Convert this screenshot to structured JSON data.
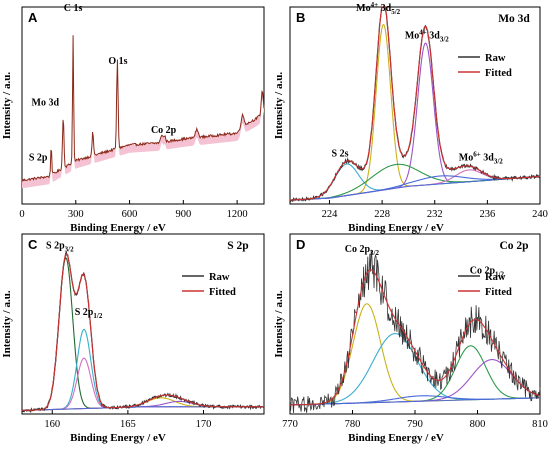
{
  "colors": {
    "raw": "#333333",
    "fitted": "#cc3333",
    "survey_fill": "#f4c2d2",
    "survey_line": "#8b2a1a",
    "yellow": "#c9b21a",
    "purple": "#9a55c9",
    "cyan": "#3aaed0",
    "green": "#2f9a4a",
    "pink": "#d470c0",
    "blue": "#4a6ad8",
    "dark_green": "#1f6b2f"
  },
  "chart_data": [
    {
      "id": "A",
      "type": "line",
      "panel_letter": "A",
      "title": "",
      "xlabel": "Binding Energy / eV",
      "ylabel": "Intensity / a.u.",
      "xlim": [
        0,
        1350
      ],
      "ylim": [
        0,
        100
      ],
      "x_ticks": [
        "0",
        "300",
        "600",
        "900",
        "1200"
      ],
      "x_tick_values": [
        0,
        300,
        600,
        900,
        1200
      ],
      "baseline": [
        [
          0,
          12
        ],
        [
          150,
          14
        ],
        [
          300,
          22
        ],
        [
          450,
          26
        ],
        [
          600,
          30
        ],
        [
          760,
          31
        ],
        [
          900,
          33
        ],
        [
          1000,
          34
        ],
        [
          1100,
          35
        ],
        [
          1200,
          36
        ],
        [
          1240,
          40
        ],
        [
          1300,
          43
        ],
        [
          1330,
          45
        ],
        [
          1350,
          47
        ]
      ],
      "peaks": [
        [
          163,
          15,
          3
        ],
        [
          230,
          26,
          4
        ],
        [
          285,
          65,
          3
        ],
        [
          395,
          12,
          4
        ],
        [
          532,
          45,
          4
        ],
        [
          780,
          4,
          6
        ],
        [
          796,
          3,
          5
        ],
        [
          975,
          4,
          8
        ],
        [
          1230,
          6,
          8
        ],
        [
          1340,
          12,
          5
        ]
      ],
      "annotations": [
        {
          "text": "C 1s",
          "x": 285,
          "y": 98
        },
        {
          "text": "Mo 3d",
          "x": 130,
          "y": 50
        },
        {
          "text": "O 1s",
          "x": 535,
          "y": 71
        },
        {
          "text": "S 2p",
          "x": 90,
          "y": 22
        },
        {
          "text": "Co 2p",
          "x": 790,
          "y": 36
        }
      ]
    },
    {
      "id": "B",
      "type": "line",
      "panel_letter": "B",
      "title": "Mo 3d",
      "xlabel": "Binding Energy / eV",
      "ylabel": "Intensity / a.u.",
      "xlim": [
        221,
        240
      ],
      "ylim": [
        0,
        100
      ],
      "x_ticks": [
        "224",
        "228",
        "232",
        "236",
        "240"
      ],
      "x_tick_values": [
        224,
        228,
        232,
        236,
        240
      ],
      "legend": [
        "Raw",
        "Fitted"
      ],
      "legend_position": "top-right",
      "background": [
        [
          221,
          2
        ],
        [
          224,
          3
        ],
        [
          226,
          5
        ],
        [
          228,
          7
        ],
        [
          230,
          9
        ],
        [
          232,
          10
        ],
        [
          234,
          11
        ],
        [
          236,
          12
        ],
        [
          238,
          13
        ],
        [
          240,
          14
        ]
      ],
      "components": [
        {
          "color_key": "yellow",
          "center": 228.1,
          "height": 84,
          "width": 0.55
        },
        {
          "color_key": "purple",
          "center": 231.3,
          "height": 72,
          "width": 0.6
        },
        {
          "color_key": "cyan",
          "center": 225.3,
          "height": 16,
          "width": 0.9
        },
        {
          "color_key": "green",
          "center": 229.0,
          "height": 12,
          "width": 1.8
        },
        {
          "color_key": "pink",
          "center": 234.6,
          "height": 6,
          "width": 1.0
        },
        {
          "color_key": "blue",
          "center": 232.4,
          "height": 4,
          "width": 1.8
        }
      ],
      "annotations": [
        {
          "text": "Mo",
          "sup": "4+",
          "rest": " 3d",
          "sub": "5/2",
          "x": 227.7,
          "y": 98
        },
        {
          "text": "Mo",
          "sup": "4+",
          "rest": " 3d",
          "sub": "3/2",
          "x": 231.4,
          "y": 84
        },
        {
          "text": "S 2s",
          "x": 224.8,
          "y": 24
        },
        {
          "text": "Mo",
          "sup": "6+",
          "rest": " 3d",
          "sub": "3/2",
          "x": 235.5,
          "y": 22
        }
      ]
    },
    {
      "id": "C",
      "type": "line",
      "panel_letter": "C",
      "title": "S 2p",
      "xlabel": "Binding Energy / eV",
      "ylabel": "Intensity / a.u.",
      "xlim": [
        158,
        174
      ],
      "ylim": [
        0,
        100
      ],
      "x_ticks": [
        "160",
        "165",
        "170"
      ],
      "x_tick_values": [
        160,
        165,
        170
      ],
      "legend": [
        "Raw",
        "Fitted"
      ],
      "legend_position": "top-right",
      "background": [
        [
          158,
          2
        ],
        [
          162,
          3
        ],
        [
          166,
          4
        ],
        [
          170,
          4
        ],
        [
          174,
          4
        ]
      ],
      "components": [
        {
          "color_key": "dark_green",
          "center": 160.9,
          "height": 84,
          "width": 0.45
        },
        {
          "color_key": "cyan",
          "center": 162.1,
          "height": 44,
          "width": 0.45
        },
        {
          "color_key": "pink",
          "center": 162.1,
          "height": 28,
          "width": 0.45
        },
        {
          "color_key": "yellow",
          "center": 167.2,
          "height": 5,
          "width": 0.9
        },
        {
          "color_key": "purple",
          "center": 168.4,
          "height": 3,
          "width": 0.9
        }
      ],
      "annotations": [
        {
          "text": "S 2p",
          "sub": "3/2",
          "x": 160.5,
          "y": 92
        },
        {
          "text": "S 2p",
          "sub": "1/2",
          "x": 162.4,
          "y": 55
        }
      ]
    },
    {
      "id": "D",
      "type": "line",
      "panel_letter": "D",
      "title": "Co 2p",
      "xlabel": "Binding Energy / eV",
      "ylabel": "Intensity / a.u.",
      "xlim": [
        770,
        810
      ],
      "ylim": [
        0,
        100
      ],
      "x_ticks": [
        "770",
        "780",
        "790",
        "800",
        "810"
      ],
      "x_tick_values": [
        770,
        780,
        790,
        800,
        810
      ],
      "legend": [
        "Raw",
        "Fitted"
      ],
      "legend_position": "top-right",
      "background": [
        [
          770,
          5
        ],
        [
          780,
          6
        ],
        [
          790,
          7
        ],
        [
          800,
          8
        ],
        [
          810,
          9
        ]
      ],
      "components": [
        {
          "color_key": "yellow",
          "center": 782.3,
          "height": 55,
          "width": 2.2
        },
        {
          "color_key": "cyan",
          "center": 786.8,
          "height": 38,
          "width": 3.5
        },
        {
          "color_key": "green",
          "center": 798.9,
          "height": 30,
          "width": 2.4
        },
        {
          "color_key": "purple",
          "center": 802.3,
          "height": 22,
          "width": 3.2
        },
        {
          "color_key": "blue",
          "center": 791.0,
          "height": 3,
          "width": 4.0
        }
      ],
      "annotations": [
        {
          "text": "Co 2p",
          "sub": "3/2",
          "x": 781.5,
          "y": 90
        },
        {
          "text": "Co 2p",
          "sub": "1/2",
          "x": 801.5,
          "y": 78
        }
      ]
    }
  ]
}
